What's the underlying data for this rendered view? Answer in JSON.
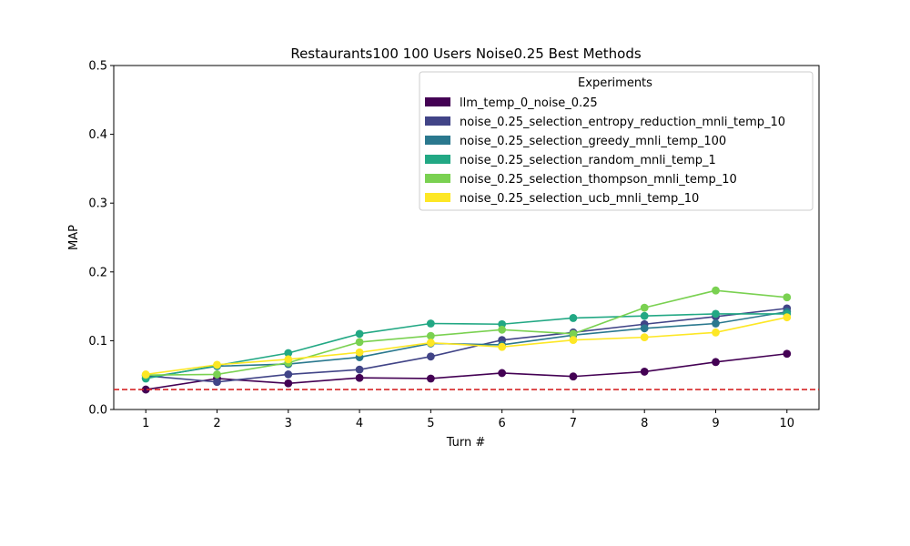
{
  "chart_data": {
    "type": "line",
    "title": "Restaurants100 100 Users Noise0.25 Best Methods",
    "xlabel": "Turn #",
    "ylabel": "MAP",
    "x": [
      1,
      2,
      3,
      4,
      5,
      6,
      7,
      8,
      9,
      10
    ],
    "xlim": [
      0.55,
      10.45
    ],
    "ylim": [
      0.0,
      0.5
    ],
    "yticks": [
      "0.0",
      "0.1",
      "0.2",
      "0.3",
      "0.4",
      "0.5"
    ],
    "xticks": [
      "1",
      "2",
      "3",
      "4",
      "5",
      "6",
      "7",
      "8",
      "9",
      "10"
    ],
    "grid": false,
    "legend": {
      "title": "Experiments",
      "placement": "top-right"
    },
    "baseline": {
      "y": 0.029,
      "color": "#d62728",
      "style": "dashed"
    },
    "series": [
      {
        "name": "llm_temp_0_noise_0.25",
        "color": "#440154",
        "values": [
          0.029,
          0.045,
          0.038,
          0.046,
          0.045,
          0.053,
          0.048,
          0.055,
          0.069,
          0.081
        ]
      },
      {
        "name": "noise_0.25_selection_entropy_reduction_mnli_temp_10",
        "color": "#414487",
        "values": [
          0.049,
          0.04,
          0.051,
          0.058,
          0.077,
          0.101,
          0.112,
          0.124,
          0.135,
          0.147
        ]
      },
      {
        "name": "noise_0.25_selection_greedy_mnli_temp_100",
        "color": "#2a788e",
        "values": [
          0.046,
          0.063,
          0.066,
          0.076,
          0.096,
          0.094,
          0.108,
          0.118,
          0.125,
          0.142
        ]
      },
      {
        "name": "noise_0.25_selection_random_mnli_temp_1",
        "color": "#22a884",
        "values": [
          0.045,
          0.064,
          0.082,
          0.11,
          0.125,
          0.124,
          0.133,
          0.136,
          0.139,
          0.139
        ]
      },
      {
        "name": "noise_0.25_selection_thompson_mnli_temp_10",
        "color": "#7ad151",
        "values": [
          0.05,
          0.051,
          0.068,
          0.098,
          0.107,
          0.116,
          0.11,
          0.148,
          0.173,
          0.163
        ]
      },
      {
        "name": "noise_0.25_selection_ucb_mnli_temp_10",
        "color": "#fde725",
        "values": [
          0.051,
          0.065,
          0.073,
          0.083,
          0.097,
          0.091,
          0.101,
          0.105,
          0.112,
          0.134
        ]
      }
    ]
  }
}
